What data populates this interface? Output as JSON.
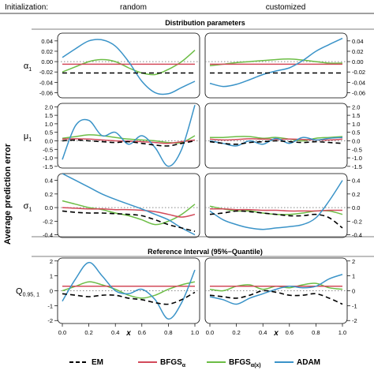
{
  "header": {
    "label": "Initialization:",
    "columns": [
      "random",
      "customized"
    ]
  },
  "sections": {
    "distribution": "Distribution parameters",
    "reference": "Reference Interval (95%−Quantile)"
  },
  "y_axis_title": "Average prediction error",
  "chart_data": {
    "type": "line",
    "xlabel": "x",
    "x_ticks": [
      "0.0",
      "0.2",
      "0.4",
      "0.6",
      "0.8",
      "1.0"
    ],
    "series_styles": [
      {
        "name": "EM",
        "color": "#000000",
        "dash": "6,4"
      },
      {
        "name": "BFGSα",
        "color": "#d24a5a",
        "dash": ""
      },
      {
        "name": "BFGSα(x)",
        "color": "#6cbd45",
        "dash": ""
      },
      {
        "name": "ADAM",
        "color": "#3a93c8",
        "dash": ""
      }
    ],
    "legend": {
      "position": "bottom",
      "items": [
        {
          "label": "EM",
          "sub": ""
        },
        {
          "label": "BFGS",
          "sub": "α"
        },
        {
          "label": "BFGS",
          "sub": "α(x)"
        },
        {
          "label": "ADAM",
          "sub": ""
        }
      ]
    },
    "x": [
      0,
      0.1,
      0.2,
      0.3,
      0.4,
      0.5,
      0.6,
      0.7,
      0.8,
      0.9,
      1.0
    ],
    "rows": [
      {
        "label": "α",
        "label_sub": "1",
        "ylim": [
          -0.07,
          0.055
        ],
        "yticks": [
          "0.04",
          "0.02",
          "0.00",
          "-0.02",
          "-0.04",
          "-0.06"
        ],
        "ytick_values": [
          0.04,
          0.02,
          0.0,
          -0.02,
          -0.04,
          -0.06
        ],
        "reference_line": 0,
        "panels": [
          {
            "column": "random",
            "series": [
              {
                "name": "EM",
                "values": [
                  -0.022,
                  -0.022,
                  -0.022,
                  -0.022,
                  -0.022,
                  -0.022,
                  -0.022,
                  -0.022,
                  -0.022,
                  -0.022,
                  -0.022
                ]
              },
              {
                "name": "BFGSα",
                "values": [
                  -0.005,
                  -0.005,
                  -0.005,
                  -0.005,
                  -0.005,
                  -0.005,
                  -0.005,
                  -0.005,
                  -0.005,
                  -0.005,
                  -0.005
                ]
              },
              {
                "name": "BFGSα(x)",
                "values": [
                  -0.02,
                  -0.01,
                  0.0,
                  0.004,
                  0.0,
                  -0.012,
                  -0.022,
                  -0.025,
                  -0.015,
                  0.0,
                  0.022
                ]
              },
              {
                "name": "ADAM",
                "values": [
                  0.008,
                  0.025,
                  0.04,
                  0.042,
                  0.03,
                  0.0,
                  -0.038,
                  -0.06,
                  -0.062,
                  -0.05,
                  -0.038
                ]
              }
            ]
          },
          {
            "column": "customized",
            "series": [
              {
                "name": "EM",
                "values": [
                  -0.022,
                  -0.022,
                  -0.022,
                  -0.022,
                  -0.022,
                  -0.022,
                  -0.022,
                  -0.022,
                  -0.022,
                  -0.022,
                  -0.022
                ]
              },
              {
                "name": "BFGSα",
                "values": [
                  -0.005,
                  -0.005,
                  -0.005,
                  -0.005,
                  -0.005,
                  -0.005,
                  -0.005,
                  -0.005,
                  -0.005,
                  -0.005,
                  -0.005
                ]
              },
              {
                "name": "BFGSα(x)",
                "values": [
                  -0.008,
                  -0.005,
                  -0.002,
                  0.0,
                  0.002,
                  0.004,
                  0.005,
                  0.003,
                  0.0,
                  -0.003,
                  -0.003
                ]
              },
              {
                "name": "ADAM",
                "values": [
                  -0.042,
                  -0.048,
                  -0.044,
                  -0.035,
                  -0.025,
                  -0.018,
                  -0.012,
                  0.002,
                  0.02,
                  0.033,
                  0.045
                ]
              }
            ]
          }
        ]
      },
      {
        "label": "μ",
        "label_sub": "1",
        "ylim": [
          -1.6,
          2.2
        ],
        "yticks": [
          "2.0",
          "1.5",
          "1.0",
          "0.5",
          "0.0",
          "-0.5",
          "-1.0",
          "-1.5"
        ],
        "ytick_values": [
          2.0,
          1.5,
          1.0,
          0.5,
          0.0,
          -0.5,
          -1.0,
          -1.5
        ],
        "reference_line": 0,
        "panels": [
          {
            "column": "random",
            "series": [
              {
                "name": "EM",
                "values": [
                  0.0,
                  0.05,
                  0.0,
                  -0.05,
                  -0.1,
                  -0.05,
                  -0.15,
                  -0.25,
                  -0.3,
                  -0.15,
                  0.0
                ]
              },
              {
                "name": "BFGSα",
                "values": [
                  0.1,
                  0.12,
                  0.1,
                  0.05,
                  0.0,
                  -0.02,
                  -0.05,
                  -0.1,
                  -0.15,
                  -0.05,
                  0.05
                ]
              },
              {
                "name": "BFGSα(x)",
                "values": [
                  0.15,
                  0.25,
                  0.35,
                  0.3,
                  0.2,
                  0.1,
                  0.05,
                  0.0,
                  -0.1,
                  -0.1,
                  0.3
                ]
              },
              {
                "name": "ADAM",
                "values": [
                  -1.1,
                  0.9,
                  1.2,
                  0.3,
                  0.5,
                  -0.2,
                  0.3,
                  -0.4,
                  -1.5,
                  -0.5,
                  2.1
                ]
              }
            ]
          },
          {
            "column": "customized",
            "series": [
              {
                "name": "EM",
                "values": [
                  -0.05,
                  -0.15,
                  -0.2,
                  -0.1,
                  -0.05,
                  0.0,
                  -0.05,
                  -0.1,
                  -0.05,
                  -0.1,
                  -0.15
                ]
              },
              {
                "name": "BFGSα",
                "values": [
                  0.1,
                  0.05,
                  0.08,
                  0.12,
                  0.1,
                  0.08,
                  0.1,
                  0.08,
                  0.05,
                  0.05,
                  0.1
                ]
              },
              {
                "name": "BFGSα(x)",
                "values": [
                  0.2,
                  0.2,
                  0.25,
                  0.25,
                  0.15,
                  0.2,
                  0.1,
                  0.0,
                  0.15,
                  0.2,
                  0.25
                ]
              },
              {
                "name": "ADAM",
                "values": [
                  0.0,
                  -0.15,
                  -0.3,
                  0.0,
                  -0.2,
                  0.15,
                  -0.15,
                  0.2,
                  0.05,
                  0.15,
                  0.2
                ]
              }
            ]
          }
        ]
      },
      {
        "label": "σ",
        "label_sub": "1",
        "ylim": [
          -0.44,
          0.5
        ],
        "yticks": [
          "0.4",
          "0.2",
          "0.0",
          "-0.2",
          "-0.4"
        ],
        "ytick_values": [
          0.4,
          0.2,
          0.0,
          -0.2,
          -0.4
        ],
        "reference_line": 0,
        "panels": [
          {
            "column": "random",
            "series": [
              {
                "name": "EM",
                "values": [
                  -0.05,
                  -0.07,
                  -0.08,
                  -0.08,
                  -0.09,
                  -0.1,
                  -0.12,
                  -0.18,
                  -0.25,
                  -0.3,
                  -0.35
                ]
              },
              {
                "name": "BFGSα",
                "values": [
                  0.0,
                  -0.01,
                  -0.02,
                  -0.02,
                  -0.03,
                  -0.03,
                  -0.04,
                  -0.06,
                  -0.1,
                  -0.14,
                  -0.1
                ]
              },
              {
                "name": "BFGSα(x)",
                "values": [
                  0.1,
                  0.05,
                  0.0,
                  -0.03,
                  -0.08,
                  -0.12,
                  -0.18,
                  -0.25,
                  -0.2,
                  -0.1,
                  0.05
                ]
              },
              {
                "name": "ADAM",
                "values": [
                  0.5,
                  0.4,
                  0.3,
                  0.2,
                  0.12,
                  0.05,
                  -0.02,
                  -0.1,
                  -0.18,
                  -0.3,
                  -0.4
                ]
              }
            ]
          },
          {
            "column": "customized",
            "series": [
              {
                "name": "EM",
                "values": [
                  -0.1,
                  -0.08,
                  -0.05,
                  -0.06,
                  -0.08,
                  -0.1,
                  -0.12,
                  -0.12,
                  -0.1,
                  -0.15,
                  -0.3
                ]
              },
              {
                "name": "BFGSα",
                "values": [
                  -0.02,
                  -0.02,
                  -0.03,
                  -0.03,
                  -0.04,
                  -0.04,
                  -0.05,
                  -0.05,
                  -0.05,
                  -0.04,
                  -0.04
                ]
              },
              {
                "name": "BFGSα(x)",
                "values": [
                  0.02,
                  -0.02,
                  -0.05,
                  -0.05,
                  -0.08,
                  -0.1,
                  -0.1,
                  -0.08,
                  -0.05,
                  -0.05,
                  -0.1
                ]
              },
              {
                "name": "ADAM",
                "values": [
                  -0.05,
                  -0.18,
                  -0.25,
                  -0.3,
                  -0.32,
                  -0.3,
                  -0.28,
                  -0.25,
                  -0.15,
                  0.1,
                  0.4
                ]
              }
            ]
          }
        ]
      },
      {
        "label": "Q",
        "label_sub": "0.95, 1",
        "ylim": [
          -2.2,
          2.2
        ],
        "yticks": [
          "2",
          "1",
          "0",
          "-1",
          "-2"
        ],
        "ytick_values": [
          2,
          1,
          0,
          -1,
          -2
        ],
        "reference_line": 0,
        "panels": [
          {
            "column": "random",
            "series": [
              {
                "name": "EM",
                "values": [
                  -0.2,
                  -0.3,
                  -0.4,
                  -0.3,
                  -0.3,
                  -0.5,
                  -0.6,
                  -0.8,
                  -0.9,
                  -0.6,
                  -0.1
                ]
              },
              {
                "name": "BFGSα",
                "values": [
                  0.3,
                  0.3,
                  0.3,
                  0.3,
                  0.3,
                  0.3,
                  0.3,
                  0.3,
                  0.3,
                  0.3,
                  0.3
                ]
              },
              {
                "name": "BFGSα(x)",
                "values": [
                  0.0,
                  0.3,
                  0.6,
                  0.4,
                  0.1,
                  -0.3,
                  -0.5,
                  -0.3,
                  0.1,
                  0.4,
                  0.6
                ]
              },
              {
                "name": "ADAM",
                "values": [
                  -0.7,
                  0.8,
                  1.9,
                  1.0,
                  0.0,
                  -0.2,
                  0.1,
                  -0.6,
                  -1.9,
                  -0.8,
                  1.4
                ]
              }
            ]
          },
          {
            "column": "customized",
            "series": [
              {
                "name": "EM",
                "values": [
                  -0.3,
                  -0.4,
                  -0.5,
                  -0.3,
                  0.0,
                  -0.1,
                  -0.3,
                  -0.3,
                  -0.2,
                  -0.5,
                  -0.9
                ]
              },
              {
                "name": "BFGSα",
                "values": [
                  0.3,
                  0.3,
                  0.3,
                  0.3,
                  0.3,
                  0.3,
                  0.3,
                  0.3,
                  0.3,
                  0.3,
                  0.3
                ]
              },
              {
                "name": "BFGSα(x)",
                "values": [
                  0.1,
                  0.0,
                  0.3,
                  0.4,
                  0.1,
                  0.3,
                  0.2,
                  0.4,
                  0.5,
                  0.2,
                  0.1
                ]
              },
              {
                "name": "ADAM",
                "values": [
                  -0.4,
                  -0.6,
                  -0.9,
                  -0.5,
                  -0.2,
                  0.1,
                  0.3,
                  0.2,
                  0.3,
                  0.8,
                  1.1
                ]
              }
            ]
          }
        ]
      }
    ]
  }
}
